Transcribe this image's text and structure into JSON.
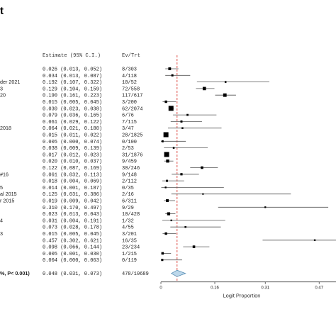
{
  "chart_data": {
    "type": "forest",
    "title_fragment": "t",
    "columns": {
      "estimate_header": "Estimate (95% C.I.)",
      "events_header": "Ev/Trt"
    },
    "xlabel": "Logit Proportion",
    "xlim": [
      0,
      0.52
    ],
    "xticks": [
      0,
      0.16,
      0.31,
      0.47
    ],
    "xtick_labels": [
      "0",
      "0.16",
      "0.31",
      "0.47"
    ],
    "reference_line": 0.048,
    "rows": [
      {
        "label": "",
        "estimate": 0.026,
        "lower": 0.013,
        "upper": 0.052,
        "est_text": "0.026 (0.013, 0.052)",
        "events": "8/303"
      },
      {
        "label": "",
        "estimate": 0.034,
        "lower": 0.013,
        "upper": 0.087,
        "est_text": "0.034 (0.013, 0.087)",
        "events": "4/118"
      },
      {
        "label": "der 2021",
        "estimate": 0.192,
        "lower": 0.107,
        "upper": 0.322,
        "est_text": "0.192 (0.107, 0.322)",
        "events": "10/52"
      },
      {
        "label": "3",
        "estimate": 0.129,
        "lower": 0.104,
        "upper": 0.159,
        "est_text": "0.129 (0.104, 0.159)",
        "events": "72/558"
      },
      {
        "label": "20",
        "estimate": 0.19,
        "lower": 0.161,
        "upper": 0.223,
        "est_text": "0.190 (0.161, 0.223)",
        "events": "117/617"
      },
      {
        "label": "",
        "estimate": 0.015,
        "lower": 0.005,
        "upper": 0.045,
        "est_text": "0.015 (0.005, 0.045)",
        "events": "3/200"
      },
      {
        "label": "",
        "estimate": 0.03,
        "lower": 0.023,
        "upper": 0.038,
        "est_text": "0.030 (0.023, 0.038)",
        "events": "62/2074"
      },
      {
        "label": "",
        "estimate": 0.079,
        "lower": 0.036,
        "upper": 0.165,
        "est_text": "0.079 (0.036, 0.165)",
        "events": "6/76"
      },
      {
        "label": "",
        "estimate": 0.061,
        "lower": 0.029,
        "upper": 0.122,
        "est_text": "0.061 (0.029, 0.122)",
        "events": "7/115"
      },
      {
        "label": "2018",
        "estimate": 0.064,
        "lower": 0.021,
        "upper": 0.18,
        "est_text": "0.064 (0.021, 0.180)",
        "events": "3/47"
      },
      {
        "label": "",
        "estimate": 0.015,
        "lower": 0.011,
        "upper": 0.022,
        "est_text": "0.015 (0.011, 0.022)",
        "events": "28/1825"
      },
      {
        "label": "",
        "estimate": 0.005,
        "lower": 0.0,
        "upper": 0.074,
        "est_text": "0.005 (0.000, 0.074)",
        "events": "0/100"
      },
      {
        "label": "",
        "estimate": 0.038,
        "lower": 0.009,
        "upper": 0.139,
        "est_text": "0.038 (0.009, 0.139)",
        "events": "2/53"
      },
      {
        "label": "",
        "estimate": 0.017,
        "lower": 0.012,
        "upper": 0.023,
        "est_text": "0.017 (0.012, 0.023)",
        "events": "31/1876"
      },
      {
        "label": "",
        "estimate": 0.02,
        "lower": 0.01,
        "upper": 0.037,
        "est_text": "0.020 (0.010, 0.037)",
        "events": "9/459"
      },
      {
        "label": "",
        "estimate": 0.122,
        "lower": 0.087,
        "upper": 0.169,
        "est_text": "0.122 (0.087, 0.169)",
        "events": "30/246"
      },
      {
        "label": "#16",
        "estimate": 0.061,
        "lower": 0.032,
        "upper": 0.113,
        "est_text": "0.061 (0.032, 0.113)",
        "events": "9/148"
      },
      {
        "label": "",
        "estimate": 0.018,
        "lower": 0.004,
        "upper": 0.069,
        "est_text": "0.018 (0.004, 0.069)",
        "events": "2/112"
      },
      {
        "label": "5",
        "estimate": 0.014,
        "lower": 0.001,
        "upper": 0.187,
        "est_text": "0.014 (0.001, 0.187)",
        "events": "0/35"
      },
      {
        "label": "al 2015",
        "estimate": 0.125,
        "lower": 0.031,
        "upper": 0.386,
        "est_text": "0.125 (0.031, 0.386)",
        "events": "2/16"
      },
      {
        "label": "r 2015",
        "estimate": 0.019,
        "lower": 0.009,
        "upper": 0.042,
        "est_text": "0.019 (0.009, 0.042)",
        "events": "6/311"
      },
      {
        "label": "",
        "estimate": 0.31,
        "lower": 0.17,
        "upper": 0.497,
        "est_text": "0.310 (0.170, 0.497)",
        "events": "9/29"
      },
      {
        "label": "",
        "estimate": 0.023,
        "lower": 0.013,
        "upper": 0.043,
        "est_text": "0.023 (0.013, 0.043)",
        "events": "10/428"
      },
      {
        "label": "4",
        "estimate": 0.031,
        "lower": 0.004,
        "upper": 0.191,
        "est_text": "0.031 (0.004, 0.191)",
        "events": "1/32"
      },
      {
        "label": "",
        "estimate": 0.073,
        "lower": 0.028,
        "upper": 0.178,
        "est_text": "0.073 (0.028, 0.178)",
        "events": "4/55"
      },
      {
        "label": "3",
        "estimate": 0.015,
        "lower": 0.005,
        "upper": 0.045,
        "est_text": "0.015 (0.005, 0.045)",
        "events": "3/201"
      },
      {
        "label": "",
        "estimate": 0.457,
        "lower": 0.302,
        "upper": 0.621,
        "est_text": "0.457 (0.302, 0.621)",
        "events": "16/35"
      },
      {
        "label": "",
        "estimate": 0.098,
        "lower": 0.066,
        "upper": 0.144,
        "est_text": "0.098 (0.066, 0.144)",
        "events": "23/234"
      },
      {
        "label": "",
        "estimate": 0.005,
        "lower": 0.001,
        "upper": 0.03,
        "est_text": "0.005 (0.001, 0.030)",
        "events": "1/215"
      },
      {
        "label": "",
        "estimate": 0.004,
        "lower": 0.0,
        "upper": 0.063,
        "est_text": "0.004 (0.000, 0.063)",
        "events": "0/119"
      }
    ],
    "summary": {
      "label": "%, P< 0.001)",
      "estimate": 0.048,
      "lower": 0.031,
      "upper": 0.073,
      "est_text": "0.048 (0.031, 0.073)",
      "events": "478/10689"
    },
    "colors": {
      "reference_line": "#d9342b",
      "diamond_fill": "#bcd7ea",
      "diamond_stroke": "#5a8fb5",
      "marks": "#000000"
    }
  }
}
